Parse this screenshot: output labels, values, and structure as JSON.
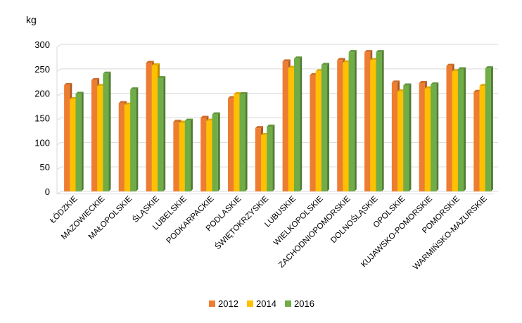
{
  "chart_data": {
    "type": "bar",
    "ylabel": "kg",
    "ylim": [
      0,
      300
    ],
    "yticks": [
      0,
      50,
      100,
      150,
      200,
      250,
      300
    ],
    "grid": true,
    "legend_position": "bottom",
    "categories": [
      "ŁÓDZKIE",
      "MAZOWIECKIE",
      "MAŁOPOLSKIE",
      "ŚLĄSKIE",
      "LUBELSKIE",
      "PODKARPACKIE",
      "PODLASKIE",
      "ŚWIĘTOKRZYSKIE",
      "LUBUSKIE",
      "WIELKOPOLSKIE",
      "ZACHODNIOPOMORSKIE",
      "DOLNOŚLĄSKIE",
      "OPOLSKIE",
      "KUJAWSKO-POMORSKIE",
      "POMORSKIE",
      "WARMIŃSKO-MAZURSKIE"
    ],
    "series": [
      {
        "name": "2012",
        "color": "#ED7D31",
        "values": [
          217,
          227,
          180,
          262,
          142,
          150,
          190,
          129,
          265,
          237,
          268,
          284,
          222,
          221,
          256,
          203
        ]
      },
      {
        "name": "2014",
        "color": "#FFC000",
        "values": [
          188,
          215,
          177,
          257,
          140,
          144,
          198,
          115,
          252,
          245,
          263,
          268,
          204,
          210,
          245,
          215
        ]
      },
      {
        "name": "2016",
        "color": "#70AD47",
        "values": [
          199,
          240,
          208,
          231,
          144,
          157,
          198,
          132,
          271,
          258,
          284,
          284,
          216,
          218,
          249,
          251
        ]
      }
    ]
  }
}
